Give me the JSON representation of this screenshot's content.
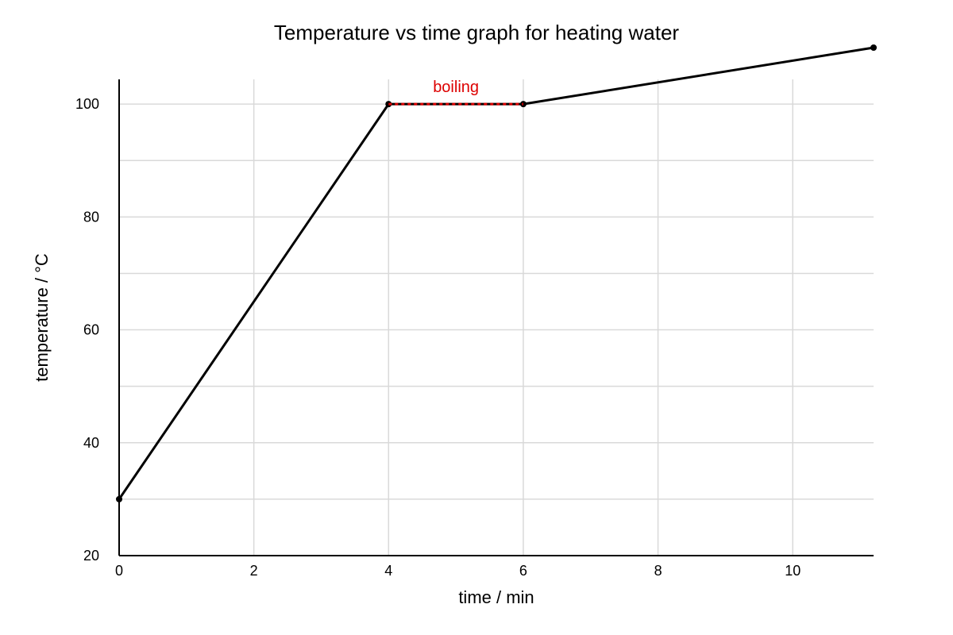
{
  "chart_data": {
    "type": "line",
    "title": "Temperature vs time graph for heating water",
    "xlabel": "time / min",
    "ylabel": "temperature / °C",
    "xlim": [
      0,
      11.2
    ],
    "ylim": [
      20,
      110
    ],
    "x_ticks": [
      0,
      2,
      4,
      6,
      8,
      10
    ],
    "y_ticks_labeled": [
      20,
      40,
      60,
      80,
      100
    ],
    "y_gridlines": [
      30,
      40,
      50,
      60,
      70,
      80,
      90,
      100
    ],
    "x_gridlines": [
      2,
      4,
      6,
      8,
      10
    ],
    "grid": true,
    "series": [
      {
        "x": [
          0,
          4,
          6,
          11.2
        ],
        "y": [
          30,
          100,
          100,
          110
        ],
        "color": "#000000"
      }
    ],
    "annotations": [
      {
        "text": "boiling",
        "x_start": 4,
        "x_end": 6,
        "y": 100,
        "color": "#dd0000",
        "style": "dashed"
      }
    ]
  }
}
